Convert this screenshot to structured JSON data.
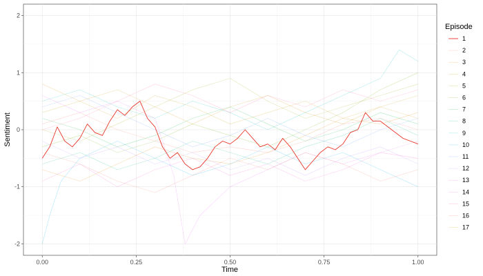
{
  "chart_data": {
    "type": "line",
    "title": "",
    "xlabel": "Time",
    "ylabel": "Sentiment",
    "xlim": [
      -0.05,
      1.05
    ],
    "ylim": [
      -2.2,
      2.2
    ],
    "x_ticks": [
      0,
      0.25,
      0.5,
      0.75,
      1
    ],
    "x_tick_labels": [
      "0.00",
      "0.25",
      "0.50",
      "0.75",
      "1.00"
    ],
    "y_ticks": [
      -2,
      -1,
      0,
      1,
      2
    ],
    "y_tick_labels": [
      "-2",
      "-1",
      "0",
      "1",
      "2"
    ],
    "grid": true,
    "legend": {
      "title": "Episode",
      "position": "right"
    },
    "highlighted_episode": "1",
    "series": [
      {
        "name": "1",
        "color": "#e8372c",
        "points": [
          [
            0,
            -0.5
          ],
          [
            0.02,
            -0.3
          ],
          [
            0.04,
            0.05
          ],
          [
            0.06,
            -0.2
          ],
          [
            0.08,
            -0.3
          ],
          [
            0.1,
            -0.15
          ],
          [
            0.12,
            0.1
          ],
          [
            0.14,
            -0.05
          ],
          [
            0.16,
            -0.1
          ],
          [
            0.18,
            0.15
          ],
          [
            0.2,
            0.35
          ],
          [
            0.22,
            0.25
          ],
          [
            0.24,
            0.4
          ],
          [
            0.26,
            0.5
          ],
          [
            0.28,
            0.2
          ],
          [
            0.3,
            0.05
          ],
          [
            0.32,
            -0.3
          ],
          [
            0.34,
            -0.5
          ],
          [
            0.36,
            -0.4
          ],
          [
            0.38,
            -0.6
          ],
          [
            0.4,
            -0.7
          ],
          [
            0.42,
            -0.65
          ],
          [
            0.44,
            -0.5
          ],
          [
            0.46,
            -0.3
          ],
          [
            0.48,
            -0.2
          ],
          [
            0.5,
            -0.25
          ],
          [
            0.52,
            -0.15
          ],
          [
            0.54,
            0.0
          ],
          [
            0.56,
            -0.15
          ],
          [
            0.58,
            -0.3
          ],
          [
            0.6,
            -0.25
          ],
          [
            0.62,
            -0.35
          ],
          [
            0.64,
            -0.15
          ],
          [
            0.66,
            -0.3
          ],
          [
            0.68,
            -0.5
          ],
          [
            0.7,
            -0.7
          ],
          [
            0.72,
            -0.55
          ],
          [
            0.74,
            -0.4
          ],
          [
            0.76,
            -0.3
          ],
          [
            0.78,
            -0.35
          ],
          [
            0.8,
            -0.25
          ],
          [
            0.82,
            -0.05
          ],
          [
            0.84,
            0.0
          ],
          [
            0.86,
            0.3
          ],
          [
            0.88,
            0.15
          ],
          [
            0.9,
            0.15
          ],
          [
            0.92,
            0.05
          ],
          [
            0.94,
            -0.05
          ],
          [
            0.96,
            -0.15
          ],
          [
            0.98,
            -0.2
          ],
          [
            1.0,
            -0.25
          ]
        ]
      },
      {
        "name": "2",
        "color": "#f8766d",
        "points": [
          [
            0,
            0.1
          ],
          [
            0.1,
            0.3
          ],
          [
            0.2,
            0.0
          ],
          [
            0.3,
            -0.2
          ],
          [
            0.4,
            -0.4
          ],
          [
            0.5,
            -0.3
          ],
          [
            0.6,
            -0.4
          ],
          [
            0.7,
            -0.2
          ],
          [
            0.8,
            0.1
          ],
          [
            0.9,
            0.2
          ],
          [
            1.0,
            0.0
          ]
        ]
      },
      {
        "name": "3",
        "color": "#e58700",
        "points": [
          [
            0,
            -0.7
          ],
          [
            0.1,
            -0.9
          ],
          [
            0.2,
            -0.6
          ],
          [
            0.3,
            -0.3
          ],
          [
            0.4,
            -0.5
          ],
          [
            0.5,
            -0.6
          ],
          [
            0.6,
            -0.4
          ],
          [
            0.7,
            -0.1
          ],
          [
            0.8,
            0.2
          ],
          [
            0.9,
            0.1
          ],
          [
            1.0,
            0.3
          ]
        ]
      },
      {
        "name": "4",
        "color": "#c99800",
        "points": [
          [
            0,
            0.3
          ],
          [
            0.1,
            0.5
          ],
          [
            0.2,
            0.2
          ],
          [
            0.3,
            0.6
          ],
          [
            0.4,
            0.4
          ],
          [
            0.5,
            0.1
          ],
          [
            0.6,
            0.3
          ],
          [
            0.7,
            0.5
          ],
          [
            0.8,
            0.2
          ],
          [
            0.9,
            0.4
          ],
          [
            1.0,
            0.6
          ]
        ]
      },
      {
        "name": "5",
        "color": "#a3a500",
        "points": [
          [
            0,
            0.0
          ],
          [
            0.1,
            -0.2
          ],
          [
            0.2,
            0.1
          ],
          [
            0.3,
            0.4
          ],
          [
            0.4,
            0.7
          ],
          [
            0.5,
            0.9
          ],
          [
            0.6,
            0.5
          ],
          [
            0.7,
            0.2
          ],
          [
            0.8,
            0.4
          ],
          [
            0.9,
            0.6
          ],
          [
            1.0,
            0.8
          ]
        ]
      },
      {
        "name": "6",
        "color": "#6bb100",
        "points": [
          [
            0,
            -0.3
          ],
          [
            0.1,
            -0.1
          ],
          [
            0.2,
            -0.4
          ],
          [
            0.3,
            -0.2
          ],
          [
            0.4,
            0.1
          ],
          [
            0.5,
            -0.1
          ],
          [
            0.6,
            -0.3
          ],
          [
            0.7,
            0.0
          ],
          [
            0.8,
            0.3
          ],
          [
            0.9,
            0.7
          ],
          [
            1.0,
            1.0
          ]
        ]
      },
      {
        "name": "7",
        "color": "#00ba38",
        "points": [
          [
            0,
            0.2
          ],
          [
            0.1,
            0.0
          ],
          [
            0.2,
            -0.3
          ],
          [
            0.3,
            -0.1
          ],
          [
            0.4,
            0.2
          ],
          [
            0.5,
            0.4
          ],
          [
            0.6,
            0.1
          ],
          [
            0.7,
            -0.2
          ],
          [
            0.8,
            0.0
          ],
          [
            0.9,
            0.3
          ],
          [
            1.0,
            0.1
          ]
        ]
      },
      {
        "name": "8",
        "color": "#00bf7d",
        "points": [
          [
            0,
            -0.6
          ],
          [
            0.1,
            -0.4
          ],
          [
            0.2,
            -0.7
          ],
          [
            0.3,
            -0.5
          ],
          [
            0.4,
            -0.2
          ],
          [
            0.5,
            -0.4
          ],
          [
            0.6,
            -0.6
          ],
          [
            0.7,
            -0.3
          ],
          [
            0.8,
            -0.1
          ],
          [
            0.9,
            0.2
          ],
          [
            1.0,
            -0.1
          ]
        ]
      },
      {
        "name": "9",
        "color": "#00c0b8",
        "points": [
          [
            0,
            0.5
          ],
          [
            0.1,
            0.7
          ],
          [
            0.2,
            0.4
          ],
          [
            0.3,
            0.2
          ],
          [
            0.4,
            0.5
          ],
          [
            0.5,
            0.3
          ],
          [
            0.6,
            0.0
          ],
          [
            0.7,
            0.3
          ],
          [
            0.8,
            0.6
          ],
          [
            0.9,
            0.9
          ],
          [
            0.95,
            1.4
          ],
          [
            1.0,
            1.2
          ]
        ]
      },
      {
        "name": "10",
        "color": "#00b0f6",
        "points": [
          [
            0,
            -2.0
          ],
          [
            0.02,
            -1.5
          ],
          [
            0.05,
            -0.9
          ],
          [
            0.1,
            -0.5
          ],
          [
            0.2,
            -0.2
          ],
          [
            0.3,
            -0.5
          ],
          [
            0.4,
            -0.8
          ],
          [
            0.5,
            -0.6
          ],
          [
            0.6,
            -0.3
          ],
          [
            0.7,
            -0.6
          ],
          [
            0.8,
            -0.4
          ],
          [
            0.9,
            -0.7
          ],
          [
            1.0,
            -1.0
          ]
        ]
      },
      {
        "name": "11",
        "color": "#619cff",
        "points": [
          [
            0,
            0.4
          ],
          [
            0.1,
            0.6
          ],
          [
            0.2,
            0.3
          ],
          [
            0.3,
            0.0
          ],
          [
            0.4,
            -0.3
          ],
          [
            0.5,
            -0.1
          ],
          [
            0.6,
            0.2
          ],
          [
            0.7,
            -0.1
          ],
          [
            0.8,
            -0.3
          ],
          [
            0.9,
            0.0
          ],
          [
            1.0,
            0.2
          ]
        ]
      },
      {
        "name": "12",
        "color": "#b983ff",
        "points": [
          [
            0,
            -0.2
          ],
          [
            0.1,
            -0.5
          ],
          [
            0.2,
            -0.3
          ],
          [
            0.3,
            -0.6
          ],
          [
            0.4,
            -0.4
          ],
          [
            0.5,
            -0.7
          ],
          [
            0.6,
            -0.5
          ],
          [
            0.7,
            -0.8
          ],
          [
            0.8,
            -0.5
          ],
          [
            0.9,
            -0.3
          ],
          [
            1.0,
            -0.6
          ]
        ]
      },
      {
        "name": "13",
        "color": "#e76bf3",
        "points": [
          [
            0,
            0.6
          ],
          [
            0.1,
            0.3
          ],
          [
            0.2,
            0.5
          ],
          [
            0.3,
            0.2
          ],
          [
            0.35,
            -0.8
          ],
          [
            0.38,
            -2.0
          ],
          [
            0.42,
            -1.5
          ],
          [
            0.5,
            -1.0
          ],
          [
            0.6,
            -0.7
          ],
          [
            0.7,
            -0.4
          ],
          [
            0.8,
            -0.6
          ],
          [
            0.9,
            -0.4
          ],
          [
            1.0,
            -0.2
          ]
        ]
      },
      {
        "name": "14",
        "color": "#fd61d1",
        "points": [
          [
            0,
            -0.9
          ],
          [
            0.1,
            -0.6
          ],
          [
            0.2,
            -1.0
          ],
          [
            0.3,
            -0.7
          ],
          [
            0.4,
            -0.5
          ],
          [
            0.5,
            -0.8
          ],
          [
            0.6,
            -0.6
          ],
          [
            0.7,
            -0.9
          ],
          [
            0.8,
            -0.7
          ],
          [
            0.9,
            -0.4
          ],
          [
            1.0,
            -0.5
          ]
        ]
      },
      {
        "name": "15",
        "color": "#ff67a4",
        "points": [
          [
            0,
            0.0
          ],
          [
            0.1,
            0.2
          ],
          [
            0.2,
            0.5
          ],
          [
            0.3,
            0.8
          ],
          [
            0.4,
            0.6
          ],
          [
            0.5,
            0.3
          ],
          [
            0.6,
            0.6
          ],
          [
            0.7,
            0.4
          ],
          [
            0.8,
            0.7
          ],
          [
            0.9,
            0.5
          ],
          [
            1.0,
            0.7
          ]
        ]
      },
      {
        "name": "16",
        "color": "#f8766d",
        "points": [
          [
            0,
            -0.4
          ],
          [
            0.1,
            -0.6
          ],
          [
            0.2,
            -0.9
          ],
          [
            0.3,
            -1.1
          ],
          [
            0.4,
            -0.8
          ],
          [
            0.5,
            -0.5
          ],
          [
            0.6,
            -0.7
          ],
          [
            0.7,
            -0.4
          ],
          [
            0.8,
            -0.6
          ],
          [
            0.9,
            -0.9
          ],
          [
            1.0,
            -0.7
          ]
        ]
      },
      {
        "name": "17",
        "color": "#d39200",
        "points": [
          [
            0,
            0.8
          ],
          [
            0.1,
            0.5
          ],
          [
            0.2,
            0.7
          ],
          [
            0.3,
            0.4
          ],
          [
            0.4,
            0.1
          ],
          [
            0.5,
            0.4
          ],
          [
            0.6,
            0.6
          ],
          [
            0.7,
            0.3
          ],
          [
            0.8,
            0.1
          ],
          [
            0.9,
            0.4
          ],
          [
            1.0,
            0.2
          ]
        ]
      }
    ]
  }
}
